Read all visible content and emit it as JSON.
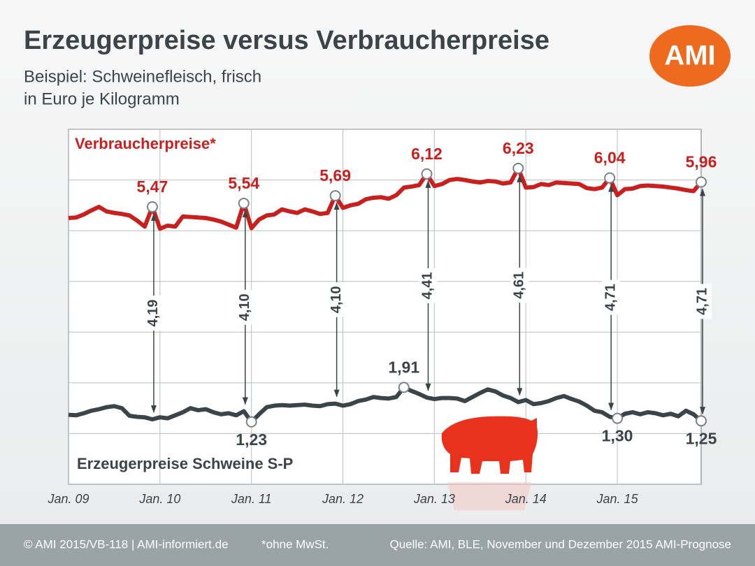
{
  "chart_data": {
    "type": "line",
    "title": "Erzeugerpreise versus Verbraucherpreise",
    "subtitle": [
      "Beispiel: Schweinefleisch, frisch",
      "in Euro je Kilogramm"
    ],
    "logo": "AMI",
    "categories": [
      "Jan. 09",
      null,
      null,
      null,
      null,
      null,
      null,
      null,
      null,
      null,
      null,
      null,
      "Jan. 10",
      null,
      null,
      null,
      null,
      null,
      null,
      null,
      null,
      null,
      null,
      null,
      "Jan. 11",
      null,
      null,
      null,
      null,
      null,
      null,
      null,
      null,
      null,
      null,
      null,
      "Jan. 12",
      null,
      null,
      null,
      null,
      null,
      null,
      null,
      null,
      null,
      null,
      null,
      "Jan. 13",
      null,
      null,
      null,
      null,
      null,
      null,
      null,
      null,
      null,
      null,
      null,
      "Jan. 14",
      null,
      null,
      null,
      null,
      null,
      null,
      null,
      null,
      null,
      null,
      null,
      "Jan. 15",
      null,
      null,
      null,
      null,
      null,
      null,
      null,
      null,
      null,
      null,
      null
    ],
    "ylim": [
      0,
      7
    ],
    "yticks": [
      0,
      1,
      2,
      3,
      4,
      5,
      6,
      7
    ],
    "grid": true,
    "series": [
      {
        "name": "Verbraucherpreise*",
        "color": "#c8201e",
        "values": [
          5.25,
          5.26,
          5.32,
          5.4,
          5.47,
          5.38,
          5.35,
          5.33,
          5.3,
          5.2,
          5.08,
          5.47,
          5.04,
          5.1,
          5.08,
          5.28,
          5.27,
          5.26,
          5.25,
          5.22,
          5.18,
          5.12,
          5.06,
          5.54,
          5.05,
          5.22,
          5.3,
          5.32,
          5.42,
          5.38,
          5.35,
          5.42,
          5.38,
          5.33,
          5.35,
          5.69,
          5.45,
          5.5,
          5.53,
          5.62,
          5.65,
          5.66,
          5.63,
          5.7,
          5.85,
          5.87,
          5.9,
          6.12,
          5.88,
          5.92,
          6.0,
          6.02,
          6.0,
          5.97,
          5.95,
          5.98,
          5.97,
          5.93,
          5.95,
          6.23,
          5.85,
          5.86,
          5.92,
          5.9,
          5.95,
          5.94,
          5.93,
          5.92,
          5.84,
          5.82,
          5.85,
          6.04,
          5.7,
          5.82,
          5.83,
          5.88,
          5.89,
          5.88,
          5.87,
          5.85,
          5.83,
          5.8,
          5.78,
          5.96
        ],
        "value_labels": [
          null,
          null,
          null,
          null,
          null,
          null,
          null,
          null,
          null,
          null,
          null,
          "5,47",
          null,
          null,
          null,
          null,
          null,
          null,
          null,
          null,
          null,
          null,
          null,
          "5,54",
          null,
          null,
          null,
          null,
          null,
          null,
          null,
          null,
          null,
          null,
          null,
          "5,69",
          null,
          null,
          null,
          null,
          null,
          null,
          null,
          null,
          null,
          null,
          null,
          "6,12",
          null,
          null,
          null,
          null,
          null,
          null,
          null,
          null,
          null,
          null,
          null,
          "6,23",
          null,
          null,
          null,
          null,
          null,
          null,
          null,
          null,
          null,
          null,
          null,
          "6,04",
          null,
          null,
          null,
          null,
          null,
          null,
          null,
          null,
          null,
          null,
          null,
          "5,96"
        ]
      },
      {
        "name": "Erzeugerpreise Schweine S-P",
        "color": "#3b4449",
        "values": [
          1.37,
          1.36,
          1.4,
          1.45,
          1.48,
          1.52,
          1.54,
          1.5,
          1.35,
          1.33,
          1.32,
          1.28,
          1.32,
          1.3,
          1.36,
          1.42,
          1.5,
          1.46,
          1.48,
          1.42,
          1.38,
          1.4,
          1.36,
          1.44,
          1.23,
          1.38,
          1.52,
          1.55,
          1.56,
          1.55,
          1.56,
          1.57,
          1.55,
          1.54,
          1.58,
          1.59,
          1.55,
          1.58,
          1.64,
          1.67,
          1.72,
          1.7,
          1.69,
          1.72,
          1.91,
          1.84,
          1.78,
          1.71,
          1.68,
          1.7,
          1.7,
          1.69,
          1.64,
          1.72,
          1.8,
          1.87,
          1.83,
          1.75,
          1.7,
          1.62,
          1.66,
          1.58,
          1.6,
          1.64,
          1.7,
          1.74,
          1.68,
          1.63,
          1.55,
          1.45,
          1.42,
          1.33,
          1.3,
          1.39,
          1.42,
          1.38,
          1.42,
          1.4,
          1.36,
          1.39,
          1.34,
          1.45,
          1.38,
          1.25
        ],
        "value_labels": [
          null,
          null,
          null,
          null,
          null,
          null,
          null,
          null,
          null,
          null,
          null,
          null,
          null,
          null,
          null,
          null,
          null,
          null,
          null,
          null,
          null,
          null,
          null,
          null,
          "1,23",
          null,
          null,
          null,
          null,
          null,
          null,
          null,
          null,
          null,
          null,
          null,
          null,
          null,
          null,
          null,
          null,
          null,
          null,
          null,
          "1,91",
          null,
          null,
          null,
          null,
          null,
          null,
          null,
          null,
          null,
          null,
          null,
          null,
          null,
          null,
          null,
          null,
          null,
          null,
          null,
          null,
          null,
          null,
          null,
          null,
          null,
          null,
          null,
          "1,30",
          null,
          null,
          null,
          null,
          null,
          null,
          null,
          null,
          null,
          null,
          "1,25"
        ]
      }
    ],
    "spreads": [
      4.19,
      4.1,
      4.1,
      4.41,
      4.61,
      4.71,
      4.71
    ],
    "spread_labels": [
      "4,19",
      "4,10",
      "4,10",
      "4,41",
      "4,61",
      "4,71",
      "4,71"
    ],
    "footer": [
      "© AMI 2015/VB-118 | AMI-informiert.de",
      "*ohne MwSt.",
      "Quelle: AMI, BLE, November und Dezember 2015 AMI-Prognose"
    ]
  }
}
